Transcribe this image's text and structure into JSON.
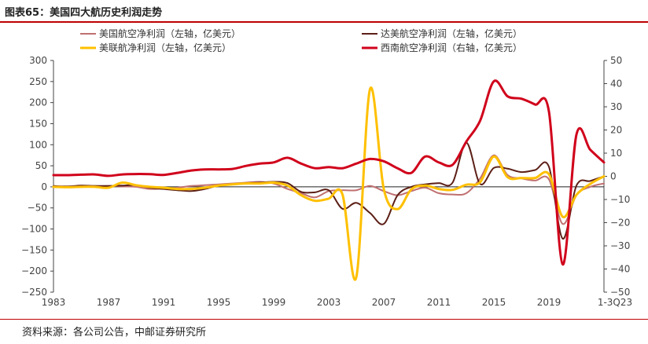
{
  "header": {
    "title": "图表65：美国四大航历史利润走势"
  },
  "footer": {
    "source": "资料来源：各公司公告，中邮证券研究所"
  },
  "chart_data": {
    "type": "line",
    "title": "美国四大航历史利润走势",
    "x": [
      1983,
      1984,
      1985,
      1986,
      1987,
      1988,
      1989,
      1990,
      1991,
      1992,
      1993,
      1994,
      1995,
      1996,
      1997,
      1998,
      1999,
      2000,
      2001,
      2002,
      2003,
      2004,
      2005,
      2006,
      2007,
      2008,
      2009,
      2010,
      2011,
      2012,
      2013,
      2014,
      2015,
      2016,
      2017,
      2018,
      2019,
      2020,
      2021,
      2022,
      2023
    ],
    "x_tick_labels": [
      "1983",
      "1987",
      "1991",
      "1995",
      "1999",
      "2003",
      "2007",
      "2011",
      "2015",
      "2019",
      "1-3Q23"
    ],
    "x_tick_years": [
      1983,
      1987,
      1991,
      1995,
      1999,
      2003,
      2007,
      2011,
      2015,
      2019,
      2023
    ],
    "ylim_left": [
      -250,
      300
    ],
    "ylim_right": [
      -50,
      50
    ],
    "yticks_left": [
      300,
      250,
      200,
      150,
      100,
      50,
      0,
      -50,
      -100,
      -150,
      -200,
      -250
    ],
    "yticks_right": [
      50,
      40,
      30,
      20,
      10,
      0,
      -10,
      -20,
      -30,
      -40,
      -50
    ],
    "series": [
      {
        "name": "美国航空净利润（左轴，亿美元）",
        "axis": "left",
        "color": "#c07070",
        "line": "thin",
        "values": [
          1,
          1,
          1,
          2,
          2,
          1,
          0,
          -5,
          -4,
          -2,
          2,
          4,
          6,
          8,
          10,
          12,
          8,
          -5,
          -15,
          -25,
          -10,
          -8,
          -8,
          2,
          -10,
          -20,
          -10,
          -2,
          -15,
          -18,
          -15,
          20,
          75,
          28,
          20,
          15,
          18,
          -88,
          -20,
          0,
          8
        ]
      },
      {
        "name": "达美航空净利润（左轴，亿美元）",
        "axis": "left",
        "color": "#5c1f16",
        "line": "thin",
        "values": [
          2,
          1,
          3,
          2,
          2,
          3,
          4,
          -2,
          -5,
          -8,
          -10,
          -5,
          3,
          6,
          9,
          10,
          12,
          9,
          -12,
          -13,
          -8,
          -52,
          -38,
          -62,
          -88,
          -20,
          0,
          6,
          9,
          10,
          105,
          7,
          45,
          43,
          35,
          40,
          48,
          -123,
          3,
          14,
          25
        ]
      },
      {
        "name": "美联航净利润（左轴，亿美元）",
        "axis": "left",
        "color": "#ffc000",
        "line": "thick",
        "values": [
          0,
          -1,
          0,
          0,
          -2,
          10,
          4,
          0,
          -2,
          -5,
          -5,
          -2,
          3,
          6,
          8,
          8,
          10,
          3,
          -20,
          -33,
          -28,
          -18,
          -215,
          232,
          -5,
          -53,
          -6,
          3,
          -5,
          -7,
          5,
          11,
          72,
          23,
          21,
          21,
          30,
          -71,
          -19,
          7,
          25
        ]
      },
      {
        "name": "西南航空净利润（右轴，亿美元）",
        "axis": "right",
        "color": "#d0021b",
        "line": "thick",
        "values": [
          0.5,
          0.5,
          0.7,
          0.8,
          0.2,
          0.8,
          1,
          0.9,
          0.6,
          1.5,
          2.5,
          3,
          3,
          3.2,
          4.5,
          5.5,
          6,
          8,
          5.5,
          3.5,
          4,
          3.5,
          5.5,
          7.5,
          6.5,
          3.5,
          1.5,
          8.5,
          6,
          5,
          15,
          24,
          41,
          34.5,
          33.5,
          31,
          28,
          -38,
          18,
          11.5,
          6
        ]
      }
    ]
  }
}
